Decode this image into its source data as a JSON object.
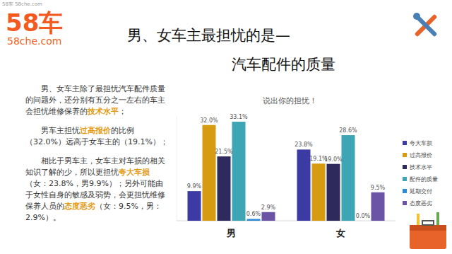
{
  "watermark": "58车 58che.com",
  "logo": {
    "brand": "58车",
    "site": "58che.com"
  },
  "title": [
    "男、女车主最担忧的是—",
    "汽车配件的质量"
  ],
  "paragraphs": [
    [
      {
        "text": "男、女车主除了最担忧汽车配件质量的问题外，还分别有五分之一左右的车主会担忧维修保养的"
      },
      {
        "text": "技术水平",
        "emphasis": true
      },
      {
        "text": "；"
      }
    ],
    [
      {
        "text": "男车主担忧"
      },
      {
        "text": "过高报价",
        "emphasis": true
      },
      {
        "text": "的比例（32.0%）远高于女车主的（19.1%）；"
      }
    ],
    [
      {
        "text": "相比于男车主，女车主对车损的相关知识了解的少，所以更担忧"
      },
      {
        "text": "夸大车损",
        "emphasis": true
      },
      {
        "text": "（女：23.8%，男9.9%）；另外可能由于女性自身的敏感及弱势，会更担忧维修保养人员的"
      },
      {
        "text": "态度恶劣",
        "emphasis": true
      },
      {
        "text": "（女：9.5%，男：2.9%）。"
      }
    ]
  ],
  "chart_data": {
    "type": "bar",
    "title": "说出你的担忧！",
    "categories": [
      "男",
      "女"
    ],
    "series": [
      {
        "name": "夸大车损",
        "color": "#3b3ba3",
        "values": [
          9.9,
          23.8
        ],
        "value_labels": [
          "9.9%",
          "23.8%"
        ]
      },
      {
        "name": "过高报价",
        "color": "#d79b12",
        "values": [
          32.0,
          19.1
        ],
        "value_labels": [
          "32.0%",
          "19.1%"
        ]
      },
      {
        "name": "技术水平",
        "color": "#2e2a5c",
        "values": [
          21.5,
          19.0
        ],
        "value_labels": [
          "21.5%",
          "19.0%"
        ]
      },
      {
        "name": "配件的质量",
        "color": "#3ea5b5",
        "values": [
          33.1,
          28.6
        ],
        "value_labels": [
          "33.1%",
          "28.6%"
        ]
      },
      {
        "name": "延期交付",
        "color": "#2e89d6",
        "values": [
          0.6,
          0.0
        ],
        "value_labels": [
          "0.6%",
          "0.0%"
        ]
      },
      {
        "name": "态度恶劣",
        "color": "#6b53a6",
        "values": [
          2.9,
          9.5
        ],
        "value_labels": [
          "2.9%",
          "9.5%"
        ]
      }
    ],
    "ylim": [
      0,
      35
    ],
    "yticks": [
      0
    ],
    "tick_labels": "x",
    "grid": false,
    "data_labels": true,
    "legend": "right"
  }
}
